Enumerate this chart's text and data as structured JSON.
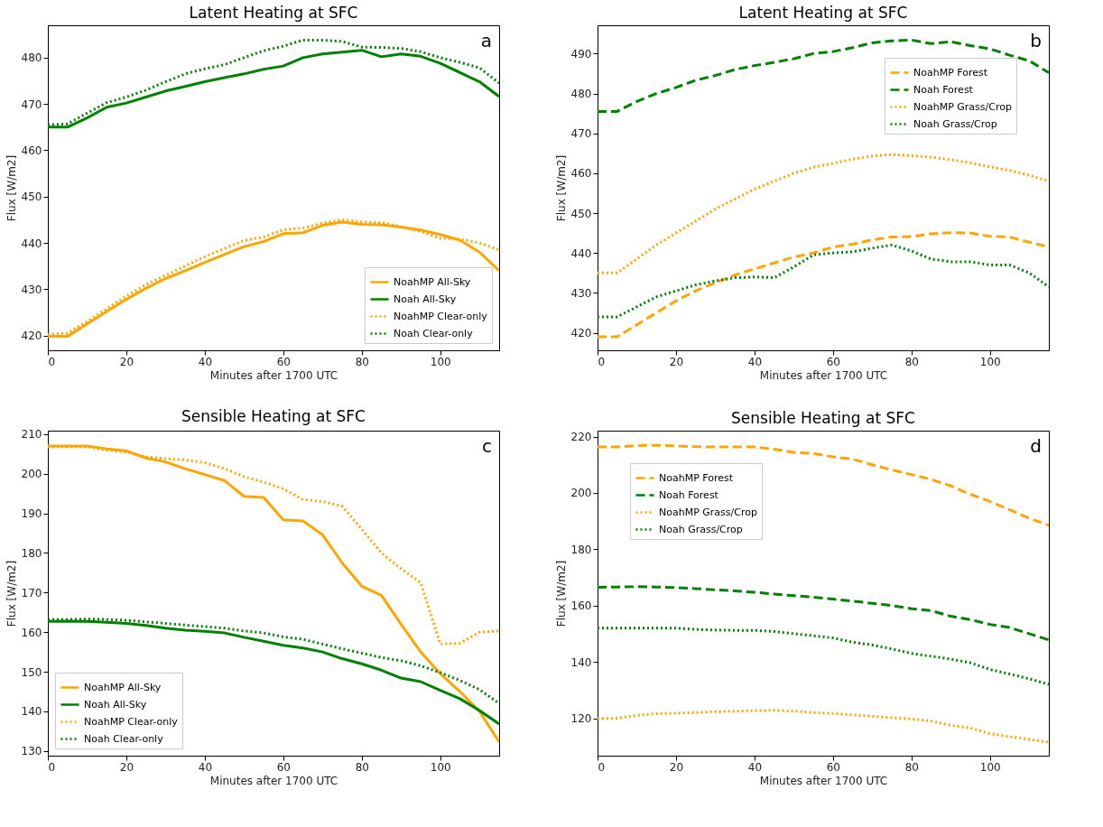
{
  "chart_data": [
    {
      "type": "line",
      "title": "Latent Heating at SFC",
      "xlabel": "Minutes after 1700 UTC",
      "ylabel": "Flux [W/m2]",
      "annotations": [
        "a"
      ],
      "x": [
        0,
        5,
        10,
        15,
        20,
        25,
        30,
        35,
        40,
        45,
        50,
        55,
        60,
        65,
        70,
        75,
        80,
        85,
        90,
        95,
        100,
        105,
        110,
        115
      ],
      "xlim": [
        0,
        115
      ],
      "xticks": [
        0,
        20,
        40,
        60,
        80,
        100
      ],
      "ylim": [
        416.8,
        487
      ],
      "yticks": [
        420,
        430,
        440,
        450,
        460,
        470,
        480
      ],
      "grid": false,
      "legend": "bottom right",
      "series": [
        {
          "name": "NoahMP All-Sky",
          "color": "#ffa500",
          "line_style": "solid",
          "values": [
            419.8,
            419.8,
            422.5,
            425.2,
            427.8,
            430.2,
            432.3,
            434,
            435.8,
            437.5,
            439.2,
            440.3,
            442,
            442.2,
            443.8,
            444.5,
            444,
            443.9,
            443.4,
            442.8,
            441.8,
            440.6,
            438,
            434
          ]
        },
        {
          "name": "Noah All-Sky",
          "color": "#008000",
          "line_style": "solid",
          "values": [
            465,
            465,
            467,
            469.3,
            470.2,
            471.5,
            472.8,
            473.8,
            474.8,
            475.7,
            476.5,
            477.5,
            478.2,
            480,
            480.8,
            481.2,
            481.6,
            480.2,
            480.8,
            480.3,
            478.8,
            476.8,
            474.8,
            471.6
          ]
        },
        {
          "name": "NoahMP Clear-only",
          "color": "#ffa500",
          "line_style": "dotted",
          "values": [
            420.2,
            420.5,
            423,
            425.8,
            428.5,
            431,
            433,
            435,
            437,
            438.8,
            440.5,
            441.3,
            442.8,
            443.2,
            444.3,
            445,
            444.5,
            444.4,
            443.5,
            442.5,
            441,
            440.8,
            440,
            438.5
          ]
        },
        {
          "name": "Noah Clear-only",
          "color": "#008000",
          "line_style": "dotted",
          "values": [
            465.5,
            465.7,
            468,
            470.3,
            471.5,
            473,
            474.8,
            476.5,
            477.6,
            478.5,
            480,
            481.5,
            482.5,
            483.8,
            483.8,
            483.5,
            482.3,
            482.2,
            482,
            481.3,
            480,
            479,
            477.8,
            474.5
          ]
        }
      ]
    },
    {
      "type": "line",
      "title": "Latent Heating at SFC",
      "xlabel": "Minutes after 1700 UTC",
      "ylabel": "Flux [W/m2]",
      "annotations": [
        "b"
      ],
      "x": [
        0,
        5,
        10,
        15,
        20,
        25,
        30,
        35,
        40,
        45,
        50,
        55,
        60,
        65,
        70,
        75,
        80,
        85,
        90,
        95,
        100,
        105,
        110,
        115
      ],
      "xlim": [
        0,
        115
      ],
      "xticks": [
        0,
        20,
        40,
        60,
        80,
        100
      ],
      "ylim": [
        415.6,
        497.1
      ],
      "yticks": [
        420,
        430,
        440,
        450,
        460,
        470,
        480,
        490
      ],
      "grid": false,
      "legend": "top right",
      "series": [
        {
          "name": "NoahMP Forest",
          "color": "#ffa500",
          "line_style": "dashed",
          "values": [
            419,
            419,
            422,
            425,
            428,
            430.5,
            432.5,
            434.5,
            436,
            437.5,
            439,
            440,
            441.5,
            442.2,
            443.3,
            444,
            444.1,
            444.8,
            445.1,
            445,
            444.2,
            444,
            442.7,
            441.5
          ]
        },
        {
          "name": "Noah Forest",
          "color": "#008000",
          "line_style": "dashed",
          "values": [
            475.5,
            475.5,
            478,
            480,
            481.5,
            483.3,
            484.5,
            486,
            487,
            487.8,
            488.7,
            490,
            490.5,
            491.5,
            492.7,
            493.2,
            493.4,
            492.5,
            493,
            492,
            491.2,
            489.6,
            488.2,
            485.2
          ]
        },
        {
          "name": "NoahMP Grass/Crop",
          "color": "#ffa500",
          "line_style": "dotted",
          "values": [
            435,
            435,
            438.5,
            442,
            445,
            448,
            451,
            453.5,
            456,
            458,
            460,
            461.5,
            462.5,
            463.5,
            464.3,
            464.7,
            464.4,
            464,
            463.4,
            462.6,
            461.6,
            460.7,
            459.5,
            458
          ]
        },
        {
          "name": "Noah Grass/Crop",
          "color": "#008000",
          "line_style": "dotted",
          "values": [
            424,
            424,
            426.5,
            429,
            430.5,
            432,
            433,
            433.8,
            434,
            433.8,
            436.5,
            439.5,
            440,
            440.3,
            441.2,
            442,
            440.5,
            438.5,
            437.8,
            437.8,
            437,
            437,
            435,
            431.5
          ]
        }
      ]
    },
    {
      "type": "line",
      "title": "Sensible Heating at SFC",
      "xlabel": "Minutes after 1700 UTC",
      "ylabel": "Flux [W/m2]",
      "annotations": [
        "c"
      ],
      "x": [
        0,
        5,
        10,
        15,
        20,
        25,
        30,
        35,
        40,
        45,
        50,
        55,
        60,
        65,
        70,
        75,
        80,
        85,
        90,
        95,
        100,
        105,
        110,
        115
      ],
      "xlim": [
        0,
        115
      ],
      "xticks": [
        0,
        20,
        40,
        60,
        80,
        100
      ],
      "ylim": [
        128.8,
        210.9
      ],
      "yticks": [
        130,
        140,
        150,
        160,
        170,
        180,
        190,
        200,
        210
      ],
      "grid": false,
      "legend": "bottom left",
      "series": [
        {
          "name": "NoahMP All-Sky",
          "color": "#ffa500",
          "line_style": "solid",
          "values": [
            207,
            207,
            207,
            206.3,
            205.8,
            204,
            203,
            201.3,
            199.8,
            198.3,
            194.3,
            194,
            188.4,
            188.1,
            184.6,
            177.5,
            171.6,
            169.3,
            162,
            155,
            149.5,
            145,
            140,
            132.3
          ]
        },
        {
          "name": "Noah All-Sky",
          "color": "#008000",
          "line_style": "solid",
          "values": [
            162.7,
            162.8,
            162.7,
            162.5,
            162.2,
            161.7,
            161,
            160.5,
            160.2,
            159.8,
            158.7,
            157.7,
            156.7,
            156,
            155,
            153.3,
            152,
            150.4,
            148.4,
            147.5,
            145.3,
            143.2,
            140.2,
            136.8
          ]
        },
        {
          "name": "NoahMP Clear-only",
          "color": "#ffa500",
          "line_style": "dotted",
          "values": [
            206.8,
            206.8,
            206.8,
            206,
            205.5,
            204.3,
            203.8,
            203.5,
            202.8,
            201.3,
            199.3,
            197.9,
            196.2,
            193.5,
            193,
            191.8,
            186,
            180,
            176,
            172.5,
            157,
            157.2,
            160,
            160.3
          ]
        },
        {
          "name": "Noah Clear-only",
          "color": "#008000",
          "line_style": "dotted",
          "values": [
            163.2,
            163.2,
            163.3,
            163.2,
            163,
            162.6,
            162.2,
            161.8,
            161.4,
            161,
            160.3,
            159.8,
            158.8,
            158.2,
            157,
            155.8,
            154.7,
            153.6,
            152.8,
            151.5,
            149.8,
            147.8,
            145.5,
            142
          ]
        }
      ]
    },
    {
      "type": "line",
      "title": "Sensible Heating at SFC",
      "xlabel": "Minutes after 1700 UTC",
      "ylabel": "Flux [W/m2]",
      "annotations": [
        "d"
      ],
      "x": [
        0,
        5,
        10,
        15,
        20,
        25,
        30,
        35,
        40,
        45,
        50,
        55,
        60,
        65,
        70,
        75,
        80,
        85,
        90,
        95,
        100,
        105,
        110,
        115
      ],
      "xlim": [
        0,
        115
      ],
      "xticks": [
        0,
        20,
        40,
        60,
        80,
        100
      ],
      "ylim": [
        106.7,
        222.1
      ],
      "yticks": [
        120,
        140,
        160,
        180,
        200,
        220
      ],
      "grid": false,
      "legend": "top left",
      "series": [
        {
          "name": "NoahMP Forest",
          "color": "#ffa500",
          "line_style": "dashed",
          "values": [
            216.3,
            216.3,
            216.8,
            216.9,
            216.7,
            216.4,
            216.3,
            216.3,
            216.3,
            215.5,
            214.4,
            214,
            212.8,
            212,
            210,
            208.2,
            206.5,
            204.8,
            202.5,
            199.5,
            197,
            194,
            191,
            188.5
          ]
        },
        {
          "name": "Noah Forest",
          "color": "#008000",
          "line_style": "dashed",
          "values": [
            166.5,
            166.6,
            166.7,
            166.6,
            166.4,
            166,
            165.6,
            165.2,
            164.7,
            164.1,
            163.5,
            163,
            162.3,
            161.6,
            160.8,
            160,
            158.9,
            158.2,
            156.2,
            155,
            153.3,
            152.2,
            150,
            147.8
          ]
        },
        {
          "name": "NoahMP Grass/Crop",
          "color": "#ffa500",
          "line_style": "dotted",
          "values": [
            119.8,
            120,
            121,
            121.6,
            121.8,
            122,
            122.3,
            122.5,
            122.7,
            122.8,
            122.5,
            122,
            121.7,
            121.2,
            120.7,
            120.2,
            119.7,
            119,
            117.5,
            116.5,
            114.5,
            113.5,
            112.5,
            111.5
          ]
        },
        {
          "name": "Noah Grass/Crop",
          "color": "#008000",
          "line_style": "dotted",
          "values": [
            152,
            152,
            152,
            152,
            152,
            151.5,
            151.3,
            151.2,
            151.2,
            150.8,
            150,
            149.3,
            148.5,
            147,
            146,
            144.6,
            143,
            142,
            141,
            139.7,
            137.3,
            135.7,
            134,
            132
          ]
        }
      ]
    }
  ]
}
